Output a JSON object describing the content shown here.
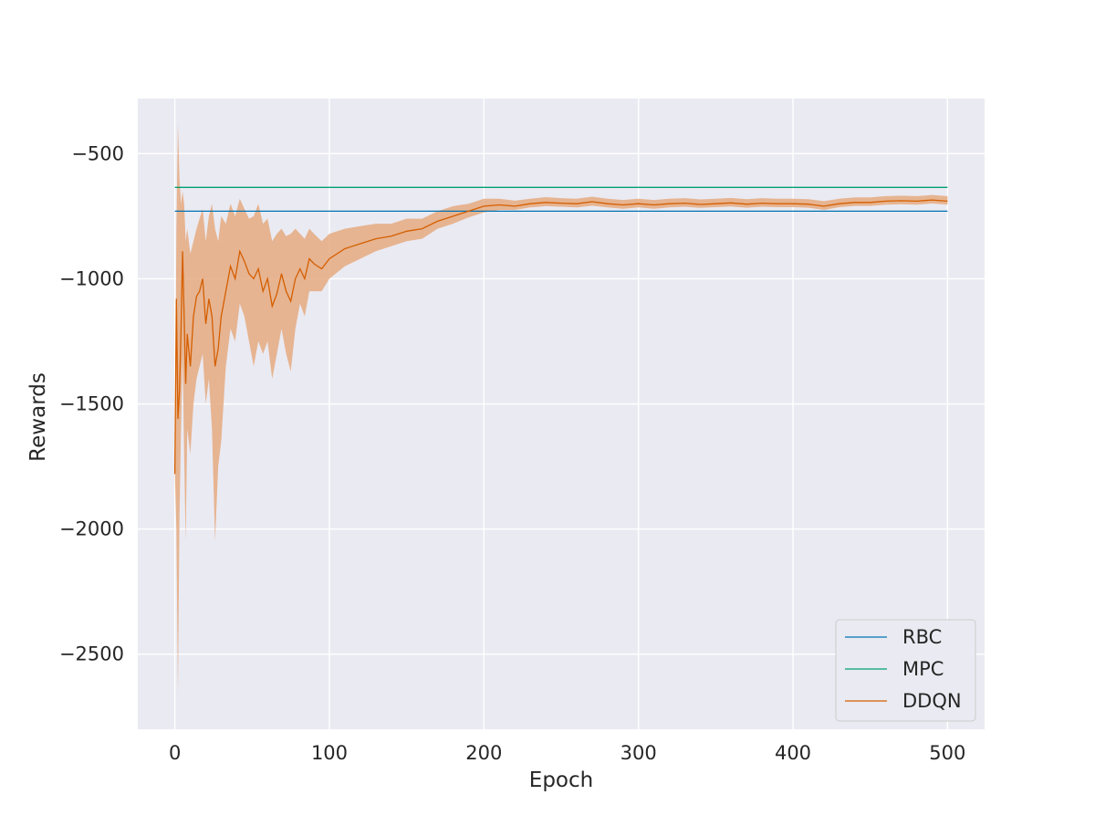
{
  "chart_data": {
    "type": "line",
    "xlabel": "Epoch",
    "ylabel": "Rewards",
    "xlim": [
      -24,
      524
    ],
    "ylim": [
      -2800,
      -280
    ],
    "xticks": [
      0,
      100,
      200,
      300,
      400,
      500
    ],
    "yticks": [
      -2500,
      -2000,
      -1500,
      -1000,
      -500
    ],
    "grid": true,
    "legend_position": "lower right",
    "colors": {
      "background": "#eaeaf2",
      "grid": "#ffffff",
      "RBC": "#0173b2",
      "MPC": "#029e73",
      "DDQN": "#d55e00",
      "band": "#e5aa80"
    },
    "series": [
      {
        "name": "RBC",
        "x": [
          0,
          500
        ],
        "values": [
          -730,
          -730
        ]
      },
      {
        "name": "MPC",
        "x": [
          0,
          500
        ],
        "values": [
          -635,
          -635
        ]
      },
      {
        "name": "DDQN",
        "x": [
          0,
          1,
          2,
          3,
          4,
          5,
          6,
          7,
          8,
          10,
          12,
          14,
          16,
          18,
          20,
          22,
          24,
          26,
          28,
          30,
          33,
          36,
          39,
          42,
          45,
          48,
          51,
          54,
          57,
          60,
          63,
          66,
          69,
          72,
          75,
          78,
          81,
          84,
          87,
          90,
          95,
          100,
          110,
          120,
          130,
          140,
          150,
          160,
          170,
          180,
          190,
          200,
          210,
          220,
          230,
          240,
          250,
          260,
          270,
          280,
          290,
          300,
          310,
          320,
          330,
          340,
          350,
          360,
          370,
          380,
          390,
          400,
          410,
          420,
          430,
          440,
          450,
          460,
          470,
          480,
          490,
          500
        ],
        "values": [
          -1780,
          -1080,
          -1560,
          -1450,
          -1200,
          -890,
          -1150,
          -1420,
          -1220,
          -1350,
          -1150,
          -1070,
          -1050,
          -1000,
          -1180,
          -1080,
          -1150,
          -1350,
          -1280,
          -1150,
          -1050,
          -950,
          -1000,
          -890,
          -930,
          -980,
          -1000,
          -960,
          -1050,
          -1000,
          -1110,
          -1060,
          -980,
          -1050,
          -1090,
          -1000,
          -960,
          -1000,
          -920,
          -940,
          -960,
          -920,
          -880,
          -860,
          -840,
          -830,
          -810,
          -800,
          -770,
          -750,
          -730,
          -710,
          -705,
          -710,
          -700,
          -695,
          -698,
          -700,
          -692,
          -700,
          -705,
          -700,
          -705,
          -700,
          -698,
          -703,
          -700,
          -697,
          -702,
          -698,
          -700,
          -700,
          -702,
          -710,
          -700,
          -695,
          -695,
          -690,
          -688,
          -690,
          -685,
          -690
        ],
        "band_lower": [
          -1780,
          -2000,
          -2660,
          -1950,
          -1600,
          -1300,
          -1700,
          -2050,
          -1600,
          -1700,
          -1500,
          -1400,
          -1350,
          -1300,
          -1500,
          -1400,
          -1600,
          -2050,
          -1750,
          -1650,
          -1350,
          -1200,
          -1250,
          -1100,
          -1150,
          -1250,
          -1350,
          -1250,
          -1300,
          -1250,
          -1400,
          -1300,
          -1200,
          -1300,
          -1370,
          -1200,
          -1100,
          -1150,
          -1050,
          -1050,
          -1050,
          -1000,
          -950,
          -920,
          -890,
          -870,
          -850,
          -840,
          -800,
          -780,
          -755,
          -735,
          -725,
          -725,
          -715,
          -710,
          -712,
          -715,
          -708,
          -715,
          -720,
          -715,
          -720,
          -715,
          -712,
          -717,
          -714,
          -711,
          -716,
          -712,
          -714,
          -714,
          -716,
          -725,
          -714,
          -709,
          -709,
          -704,
          -702,
          -704,
          -699,
          -704
        ],
        "band_upper": [
          -1780,
          -800,
          -380,
          -600,
          -700,
          -650,
          -700,
          -850,
          -800,
          -900,
          -850,
          -800,
          -760,
          -720,
          -850,
          -750,
          -700,
          -800,
          -850,
          -750,
          -780,
          -700,
          -750,
          -680,
          -720,
          -760,
          -750,
          -700,
          -780,
          -760,
          -850,
          -820,
          -800,
          -830,
          -820,
          -800,
          -820,
          -840,
          -800,
          -820,
          -850,
          -820,
          -800,
          -790,
          -780,
          -780,
          -760,
          -760,
          -730,
          -710,
          -700,
          -680,
          -680,
          -688,
          -680,
          -674,
          -678,
          -680,
          -672,
          -680,
          -685,
          -680,
          -685,
          -680,
          -678,
          -683,
          -680,
          -677,
          -682,
          -678,
          -680,
          -680,
          -682,
          -690,
          -680,
          -675,
          -675,
          -670,
          -668,
          -670,
          -665,
          -670
        ]
      }
    ]
  }
}
